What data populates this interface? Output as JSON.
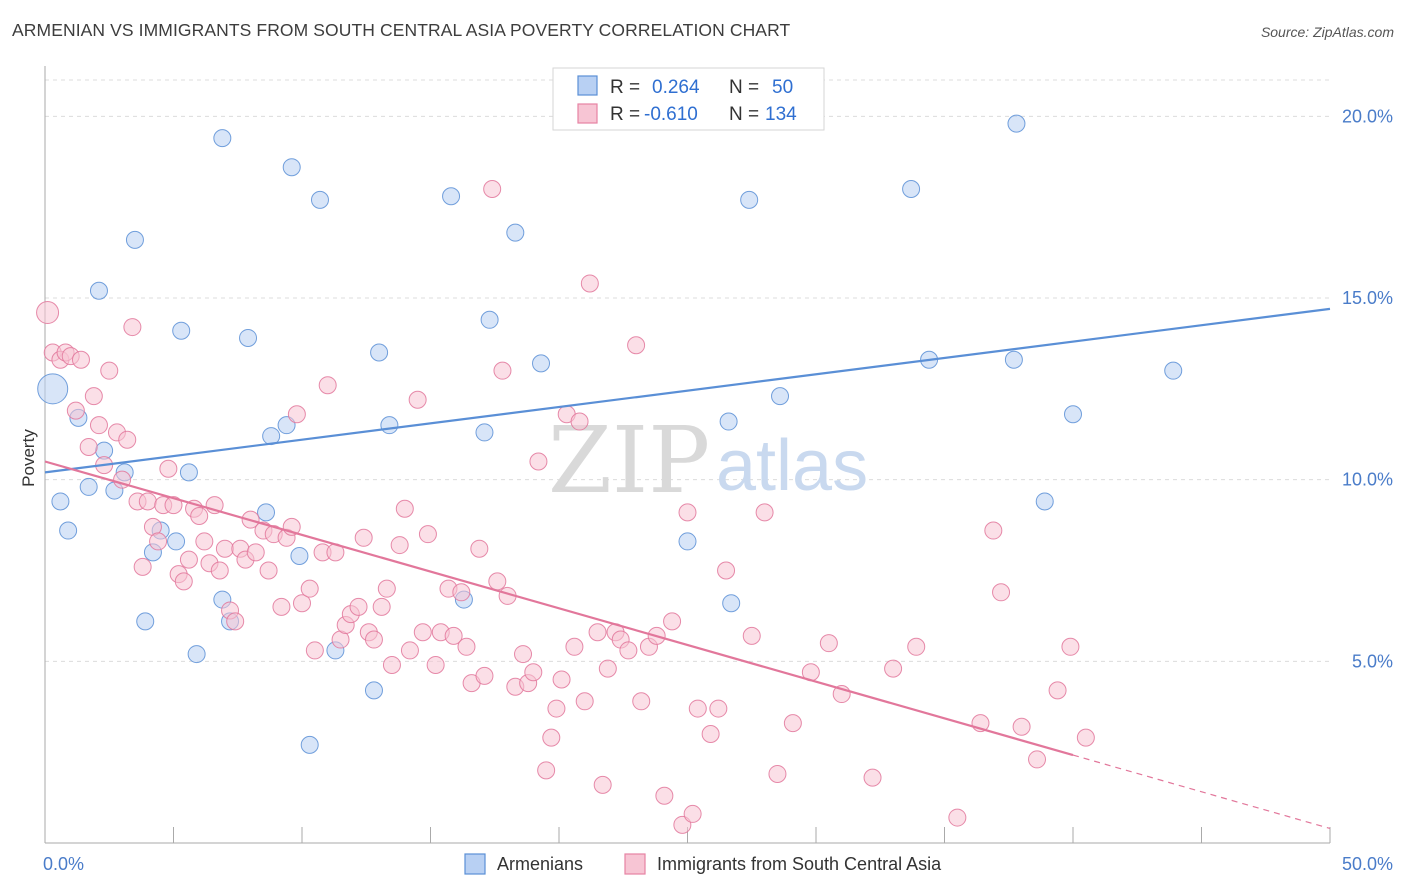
{
  "title": "ARMENIAN VS IMMIGRANTS FROM SOUTH CENTRAL ASIA POVERTY CORRELATION CHART",
  "source": "Source: ZipAtlas.com",
  "watermark": {
    "zip": "ZIP",
    "atlas": "atlas"
  },
  "legend": {
    "r_label": "R =",
    "n_label": "N =",
    "rows": [
      {
        "r": "0.264",
        "n": "50",
        "fill": "#b8d0f3",
        "stroke": "#5a8fd6"
      },
      {
        "r": "-0.610",
        "n": "134",
        "fill": "#f7c5d4",
        "stroke": "#e783a3"
      }
    ]
  },
  "chart_data": {
    "type": "scatter",
    "title": "ARMENIAN VS IMMIGRANTS FROM SOUTH CENTRAL ASIA POVERTY CORRELATION CHART",
    "xlabel": "",
    "ylabel": "Poverty",
    "xlim": [
      0,
      50
    ],
    "ylim": [
      0,
      21
    ],
    "x_tick_labels": [
      {
        "value": 0,
        "label": "0.0%"
      },
      {
        "value": 50,
        "label": "50.0%"
      }
    ],
    "y_tick_labels": [
      {
        "value": 5,
        "label": "5.0%"
      },
      {
        "value": 10,
        "label": "10.0%"
      },
      {
        "value": 15,
        "label": "15.0%"
      },
      {
        "value": 20,
        "label": "20.0%"
      }
    ],
    "grid": "horizontal dashed",
    "legend_position": "top-center",
    "series": [
      {
        "name": "Armenians",
        "color": "#5a8fd6",
        "fill": "#b8d0f3",
        "trend": {
          "x0": 0,
          "y0": 10.2,
          "x1": 50,
          "y1": 14.7,
          "dashed_from": null
        },
        "points": [
          [
            0.3,
            12.5
          ],
          [
            0.6,
            9.4
          ],
          [
            0.9,
            8.6
          ],
          [
            1.3,
            11.7
          ],
          [
            1.7,
            9.8
          ],
          [
            2.1,
            15.2
          ],
          [
            2.3,
            10.8
          ],
          [
            2.7,
            9.7
          ],
          [
            3.1,
            10.2
          ],
          [
            3.5,
            16.6
          ],
          [
            3.9,
            6.1
          ],
          [
            4.2,
            8.0
          ],
          [
            4.5,
            8.6
          ],
          [
            5.1,
            8.3
          ],
          [
            5.3,
            14.1
          ],
          [
            5.6,
            10.2
          ],
          [
            5.9,
            5.2
          ],
          [
            6.9,
            19.4
          ],
          [
            6.9,
            6.7
          ],
          [
            7.2,
            6.1
          ],
          [
            7.9,
            13.9
          ],
          [
            8.6,
            9.1
          ],
          [
            8.8,
            11.2
          ],
          [
            9.4,
            11.5
          ],
          [
            9.6,
            18.6
          ],
          [
            9.9,
            7.9
          ],
          [
            10.3,
            2.7
          ],
          [
            10.7,
            17.7
          ],
          [
            11.3,
            5.3
          ],
          [
            12.8,
            4.2
          ],
          [
            13.0,
            13.5
          ],
          [
            13.4,
            11.5
          ],
          [
            15.8,
            17.8
          ],
          [
            16.3,
            6.7
          ],
          [
            17.1,
            11.3
          ],
          [
            17.3,
            14.4
          ],
          [
            18.3,
            16.8
          ],
          [
            19.3,
            13.2
          ],
          [
            25.0,
            8.3
          ],
          [
            26.7,
            6.6
          ],
          [
            26.6,
            11.6
          ],
          [
            27.4,
            17.7
          ],
          [
            28.6,
            12.3
          ],
          [
            33.7,
            18.0
          ],
          [
            34.4,
            13.3
          ],
          [
            37.8,
            19.8
          ],
          [
            37.7,
            13.3
          ],
          [
            38.9,
            9.4
          ],
          [
            40.0,
            11.8
          ],
          [
            43.9,
            13.0
          ]
        ]
      },
      {
        "name": "Immigrants from South Central Asia",
        "color": "#e2779b",
        "fill": "#f7c5d4",
        "trend": {
          "x0": 0,
          "y0": 10.5,
          "x1": 50,
          "y1": 0.4,
          "dashed_from": 40
        },
        "points": [
          [
            0.1,
            14.6
          ],
          [
            0.3,
            13.5
          ],
          [
            0.6,
            13.3
          ],
          [
            0.8,
            13.5
          ],
          [
            1.0,
            13.4
          ],
          [
            1.2,
            11.9
          ],
          [
            1.4,
            13.3
          ],
          [
            1.7,
            10.9
          ],
          [
            1.9,
            12.3
          ],
          [
            2.1,
            11.5
          ],
          [
            2.3,
            10.4
          ],
          [
            2.5,
            13.0
          ],
          [
            2.8,
            11.3
          ],
          [
            3.0,
            10.0
          ],
          [
            3.2,
            11.1
          ],
          [
            3.4,
            14.2
          ],
          [
            3.6,
            9.4
          ],
          [
            3.8,
            7.6
          ],
          [
            4.0,
            9.4
          ],
          [
            4.2,
            8.7
          ],
          [
            4.4,
            8.3
          ],
          [
            4.6,
            9.3
          ],
          [
            4.8,
            10.3
          ],
          [
            5.0,
            9.3
          ],
          [
            5.2,
            7.4
          ],
          [
            5.4,
            7.2
          ],
          [
            5.6,
            7.8
          ],
          [
            5.8,
            9.2
          ],
          [
            6.0,
            9.0
          ],
          [
            6.2,
            8.3
          ],
          [
            6.4,
            7.7
          ],
          [
            6.6,
            9.3
          ],
          [
            6.8,
            7.5
          ],
          [
            7.0,
            8.1
          ],
          [
            7.2,
            6.4
          ],
          [
            7.4,
            6.1
          ],
          [
            7.6,
            8.1
          ],
          [
            7.8,
            7.8
          ],
          [
            8.0,
            8.9
          ],
          [
            8.2,
            8.0
          ],
          [
            8.5,
            8.6
          ],
          [
            8.7,
            7.5
          ],
          [
            8.9,
            8.5
          ],
          [
            9.2,
            6.5
          ],
          [
            9.4,
            8.4
          ],
          [
            9.6,
            8.7
          ],
          [
            9.8,
            11.8
          ],
          [
            10.0,
            6.6
          ],
          [
            10.3,
            7.0
          ],
          [
            10.5,
            5.3
          ],
          [
            10.8,
            8.0
          ],
          [
            11.0,
            12.6
          ],
          [
            11.3,
            8.0
          ],
          [
            11.5,
            5.6
          ],
          [
            11.7,
            6.0
          ],
          [
            11.9,
            6.3
          ],
          [
            12.2,
            6.5
          ],
          [
            12.4,
            8.4
          ],
          [
            12.6,
            5.8
          ],
          [
            12.8,
            5.6
          ],
          [
            13.1,
            6.5
          ],
          [
            13.3,
            7.0
          ],
          [
            13.5,
            4.9
          ],
          [
            13.8,
            8.2
          ],
          [
            14.0,
            9.2
          ],
          [
            14.2,
            5.3
          ],
          [
            14.5,
            12.2
          ],
          [
            14.7,
            5.8
          ],
          [
            14.9,
            8.5
          ],
          [
            15.2,
            4.9
          ],
          [
            15.4,
            5.8
          ],
          [
            15.7,
            7.0
          ],
          [
            15.9,
            5.7
          ],
          [
            16.2,
            6.9
          ],
          [
            16.4,
            5.4
          ],
          [
            16.6,
            4.4
          ],
          [
            16.9,
            8.1
          ],
          [
            17.1,
            4.6
          ],
          [
            17.4,
            18.0
          ],
          [
            17.6,
            7.2
          ],
          [
            17.8,
            13.0
          ],
          [
            18.0,
            6.8
          ],
          [
            18.3,
            4.3
          ],
          [
            18.6,
            5.2
          ],
          [
            18.8,
            4.4
          ],
          [
            19.0,
            4.7
          ],
          [
            19.2,
            10.5
          ],
          [
            19.5,
            2.0
          ],
          [
            19.7,
            2.9
          ],
          [
            19.9,
            3.7
          ],
          [
            20.1,
            4.5
          ],
          [
            20.3,
            11.8
          ],
          [
            20.6,
            5.4
          ],
          [
            20.8,
            11.6
          ],
          [
            21.0,
            3.9
          ],
          [
            21.2,
            15.4
          ],
          [
            21.5,
            5.8
          ],
          [
            21.7,
            1.6
          ],
          [
            21.9,
            4.8
          ],
          [
            22.2,
            5.8
          ],
          [
            22.4,
            5.6
          ],
          [
            22.7,
            5.3
          ],
          [
            23.0,
            13.7
          ],
          [
            23.2,
            3.9
          ],
          [
            23.5,
            5.4
          ],
          [
            23.8,
            5.7
          ],
          [
            24.1,
            1.3
          ],
          [
            24.4,
            6.1
          ],
          [
            24.8,
            0.5
          ],
          [
            25.0,
            9.1
          ],
          [
            25.2,
            0.8
          ],
          [
            25.4,
            3.7
          ],
          [
            25.9,
            3.0
          ],
          [
            26.2,
            3.7
          ],
          [
            26.5,
            7.5
          ],
          [
            27.5,
            5.7
          ],
          [
            28.0,
            9.1
          ],
          [
            28.5,
            1.9
          ],
          [
            29.1,
            3.3
          ],
          [
            29.8,
            4.7
          ],
          [
            30.5,
            5.5
          ],
          [
            31.0,
            4.1
          ],
          [
            32.2,
            1.8
          ],
          [
            33.0,
            4.8
          ],
          [
            33.9,
            5.4
          ],
          [
            35.5,
            0.7
          ],
          [
            36.4,
            3.3
          ],
          [
            37.2,
            6.9
          ],
          [
            38.0,
            3.2
          ],
          [
            36.9,
            8.6
          ],
          [
            38.6,
            2.3
          ],
          [
            39.4,
            4.2
          ],
          [
            39.9,
            5.4
          ],
          [
            40.5,
            2.9
          ]
        ]
      }
    ]
  }
}
